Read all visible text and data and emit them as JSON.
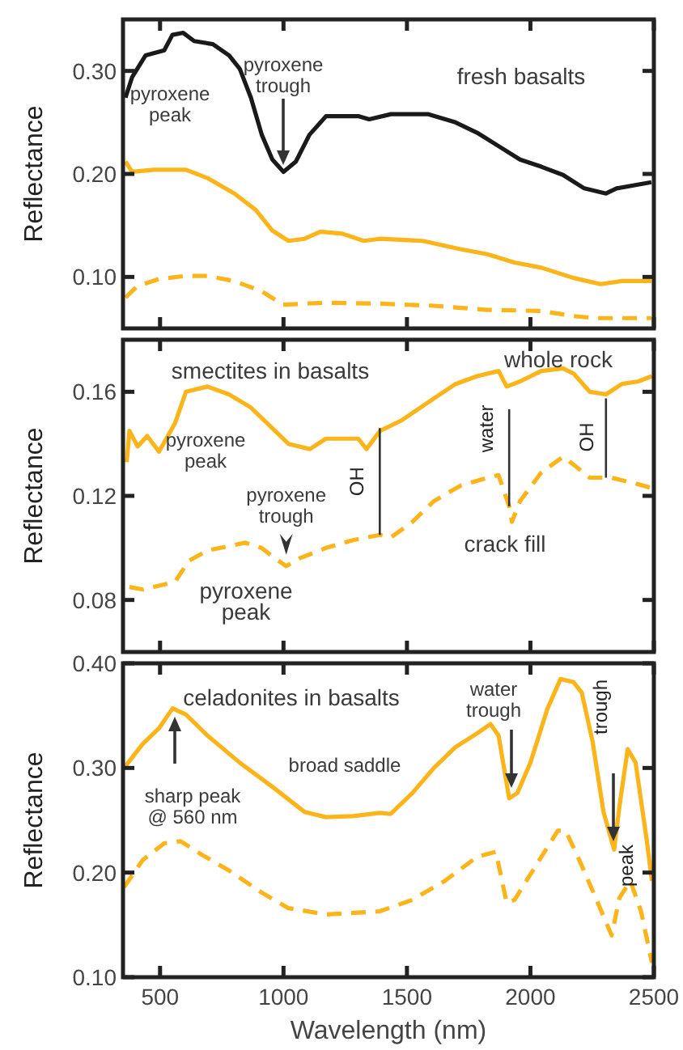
{
  "chart_data": [
    {
      "type": "line",
      "title": "fresh basalts",
      "ylabel": "Reflectance",
      "xlim": [
        350,
        2500
      ],
      "xticks": [
        500,
        1000,
        1500,
        2000,
        2500
      ],
      "ylim": [
        0.05,
        0.35
      ],
      "yticks": [
        {
          "value": 0.1,
          "label": "0.10"
        },
        {
          "value": 0.2,
          "label": "0.20"
        },
        {
          "value": 0.3,
          "label": "0.30"
        }
      ],
      "tick_labels": "y",
      "annotations": [
        "pyroxene peak",
        "pyroxene trough"
      ],
      "x": [
        360,
        387,
        441,
        517,
        550,
        594,
        638,
        714,
        780,
        823,
        868,
        912,
        955,
        1000,
        1050,
        1105,
        1172,
        1305,
        1347,
        1435,
        1587,
        1697,
        1784,
        1871,
        1958,
        2044,
        2132,
        2218,
        2306,
        2349,
        2490
      ],
      "series": [
        {
          "color": "#1a1a1a",
          "line_style": "solid",
          "values": [
            0.274,
            0.294,
            0.315,
            0.32,
            0.335,
            0.337,
            0.329,
            0.326,
            0.315,
            0.302,
            0.274,
            0.238,
            0.214,
            0.202,
            0.212,
            0.238,
            0.256,
            0.256,
            0.253,
            0.258,
            0.258,
            0.25,
            0.24,
            0.227,
            0.214,
            0.207,
            0.199,
            0.186,
            0.181,
            0.186,
            0.192
          ]
        },
        {
          "color": "#fbb41a",
          "line_style": "solid",
          "x": [
            360,
            387,
            474,
            605,
            692,
            801,
            888,
            955,
            1020,
            1085,
            1150,
            1238,
            1325,
            1390,
            1563,
            1716,
            1825,
            1935,
            2044,
            2175,
            2284,
            2370,
            2490
          ],
          "values": [
            0.212,
            0.202,
            0.204,
            0.204,
            0.196,
            0.181,
            0.165,
            0.145,
            0.135,
            0.137,
            0.144,
            0.142,
            0.135,
            0.137,
            0.135,
            0.127,
            0.122,
            0.114,
            0.109,
            0.099,
            0.093,
            0.096,
            0.096
          ]
        },
        {
          "color": "#fbb41a",
          "line_style": "dashed",
          "x": [
            360,
            408,
            496,
            605,
            692,
            801,
            912,
            998,
            1172,
            1390,
            1608,
            1825,
            2044,
            2175,
            2262,
            2490
          ],
          "values": [
            0.08,
            0.091,
            0.098,
            0.101,
            0.101,
            0.096,
            0.086,
            0.073,
            0.075,
            0.074,
            0.072,
            0.068,
            0.067,
            0.062,
            0.06,
            0.06
          ]
        }
      ]
    },
    {
      "type": "line",
      "title": "smectites in basalts",
      "ylabel": "Reflectance",
      "xlim": [
        350,
        2500
      ],
      "xticks": [
        500,
        1000,
        1500,
        2000,
        2500
      ],
      "ylim": [
        0.06,
        0.18
      ],
      "yticks": [
        0.08,
        0.12,
        0.16
      ],
      "tick_labels": "y",
      "annotations": [
        "pyroxene peak",
        {
          "text": "pyroxene trough",
          "x": 1011,
          "y": 0.093
        },
        "pyroxene peak",
        {
          "text": "OH",
          "x": 1390,
          "y": 0.105
        },
        {
          "text": "water",
          "x": 1914,
          "y": 0.116
        },
        {
          "text": "OH",
          "x": 2306,
          "y": 0.127
        }
      ],
      "series": [
        {
          "name": "whole rock",
          "color": "#fbb41a",
          "line_style": "solid",
          "x": [
            365,
            376,
            409,
            448,
            496,
            561,
            605,
            692,
            779,
            867,
            955,
            1020,
            1107,
            1172,
            1303,
            1336,
            1391,
            1478,
            1587,
            1697,
            1784,
            1871,
            1904,
            1958,
            2044,
            2132,
            2175,
            2240,
            2306,
            2371,
            2437,
            2492
          ],
          "values": [
            0.133,
            0.145,
            0.139,
            0.143,
            0.137,
            0.148,
            0.16,
            0.162,
            0.159,
            0.154,
            0.146,
            0.14,
            0.138,
            0.142,
            0.142,
            0.138,
            0.145,
            0.149,
            0.156,
            0.163,
            0.166,
            0.168,
            0.162,
            0.164,
            0.168,
            0.169,
            0.167,
            0.16,
            0.159,
            0.163,
            0.164,
            0.166
          ]
        },
        {
          "name": "crack fill",
          "color": "#fbb41a",
          "line_style": "dashed",
          "x": [
            376,
            431,
            561,
            616,
            692,
            845,
            911,
            966,
            1011,
            1065,
            1172,
            1281,
            1391,
            1434,
            1522,
            1609,
            1718,
            1827,
            1871,
            1914,
            1925,
            1958,
            2044,
            2132,
            2175,
            2240,
            2328,
            2415,
            2492
          ],
          "values": [
            0.085,
            0.084,
            0.087,
            0.095,
            0.099,
            0.102,
            0.1,
            0.096,
            0.093,
            0.096,
            0.1,
            0.103,
            0.105,
            0.104,
            0.11,
            0.118,
            0.124,
            0.127,
            0.128,
            0.116,
            0.11,
            0.118,
            0.129,
            0.135,
            0.132,
            0.127,
            0.127,
            0.125,
            0.123
          ]
        }
      ]
    },
    {
      "type": "line",
      "title": "celadonites in basalts",
      "xlabel": "Wavelength (nm)",
      "ylabel": "Reflectance",
      "xlim": [
        350,
        2500
      ],
      "xticks": [
        500,
        1000,
        1500,
        2000,
        2500
      ],
      "ylim": [
        0.1,
        0.4
      ],
      "yticks": [
        {
          "value": 0.1,
          "label": "0.10"
        },
        {
          "value": 0.2,
          "label": "0.20"
        },
        {
          "value": 0.3,
          "label": "0.30"
        },
        {
          "value": 0.4,
          "label": "0.40"
        }
      ],
      "annotations": [
        "sharp peak @ 560 nm",
        "broad saddle",
        "water trough",
        "trough",
        "peak"
      ],
      "series": [
        {
          "color": "#fbb41a",
          "line_style": "solid",
          "x": [
            354,
            430,
            496,
            551,
            605,
            692,
            823,
            955,
            1085,
            1172,
            1281,
            1390,
            1434,
            1522,
            1609,
            1697,
            1784,
            1838,
            1871,
            1914,
            1947,
            2000,
            2068,
            2122,
            2175,
            2208,
            2252,
            2296,
            2339,
            2361,
            2394,
            2426,
            2470,
            2492
          ],
          "values": [
            0.3,
            0.323,
            0.338,
            0.357,
            0.351,
            0.331,
            0.305,
            0.282,
            0.258,
            0.253,
            0.254,
            0.257,
            0.256,
            0.276,
            0.3,
            0.32,
            0.333,
            0.342,
            0.331,
            0.271,
            0.276,
            0.305,
            0.356,
            0.385,
            0.382,
            0.372,
            0.325,
            0.258,
            0.222,
            0.264,
            0.318,
            0.305,
            0.233,
            0.192
          ]
        },
        {
          "color": "#fbb41a",
          "line_style": "dashed",
          "x": [
            354,
            430,
            517,
            583,
            670,
            779,
            911,
            1020,
            1172,
            1390,
            1522,
            1653,
            1784,
            1860,
            1904,
            1936,
            2023,
            2111,
            2143,
            2198,
            2264,
            2329,
            2361,
            2405,
            2448,
            2492
          ],
          "values": [
            0.186,
            0.212,
            0.228,
            0.23,
            0.217,
            0.202,
            0.181,
            0.166,
            0.16,
            0.163,
            0.174,
            0.192,
            0.215,
            0.22,
            0.171,
            0.174,
            0.207,
            0.24,
            0.24,
            0.212,
            0.176,
            0.14,
            0.176,
            0.192,
            0.163,
            0.114
          ]
        }
      ]
    }
  ]
}
